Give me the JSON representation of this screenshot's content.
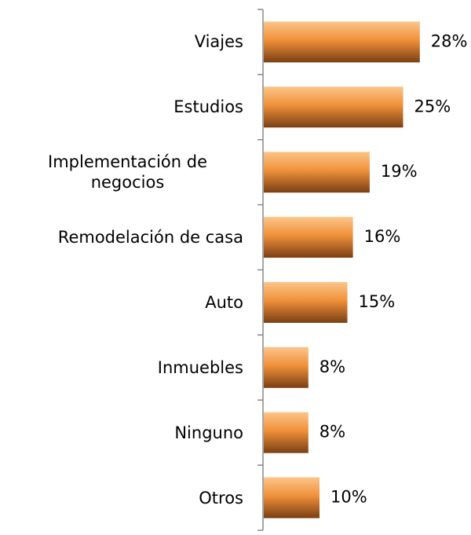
{
  "chart_data": {
    "type": "barh",
    "categories": [
      "Viajes",
      "Estudios",
      "Implementación de negocios",
      "Remodelación de casa",
      "Auto",
      "Inmuebles",
      "Ninguno",
      "Otros"
    ],
    "values": [
      28,
      25,
      19,
      16,
      15,
      8,
      8,
      10
    ],
    "value_labels": [
      "28%",
      "25%",
      "19%",
      "16%",
      "15%",
      "8%",
      "8%",
      "10%"
    ],
    "color": "#f0913a"
  }
}
